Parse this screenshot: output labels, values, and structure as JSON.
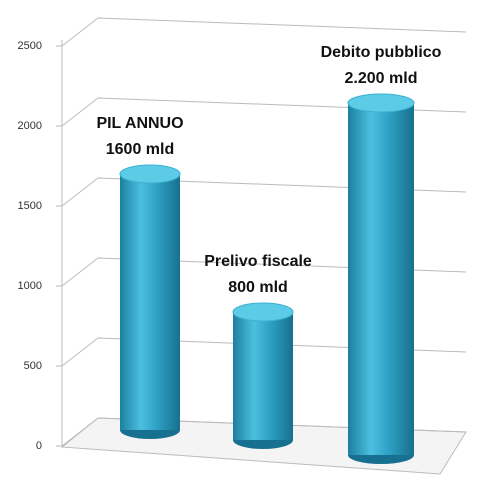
{
  "chart_data": {
    "type": "bar",
    "categories": [
      "PIL ANNUO",
      "Prelivo fiscale",
      "Debito pubblico"
    ],
    "values": [
      1600,
      800,
      2200
    ],
    "value_labels": [
      "1600 mld",
      "800 mld",
      "2.200 mld"
    ],
    "color": "#2fa3c6",
    "ylim": [
      0,
      2500
    ],
    "yticks": [
      0,
      500,
      1000,
      1500,
      2000,
      2500
    ],
    "grid": true
  }
}
